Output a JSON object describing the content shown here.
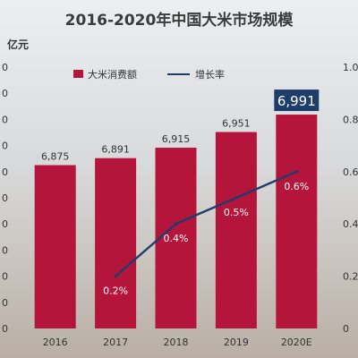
{
  "title": "2016-2020年中国大米市场规模",
  "chart_data": {
    "type": "bar",
    "unit_left": "亿元",
    "categories": [
      "2016",
      "2017",
      "2018",
      "2019",
      "2020E"
    ],
    "series": [
      {
        "name": "大米消费额",
        "type": "bar",
        "axis": "left",
        "color": "#b5153a",
        "values": [
          6875,
          6891,
          6915,
          6951,
          6991
        ],
        "labels": [
          "6,875",
          "6,891",
          "6,915",
          "6,951",
          "6,991"
        ]
      },
      {
        "name": "增长率",
        "type": "line",
        "axis": "right",
        "color": "#1f3d6b",
        "values": [
          null,
          0.2,
          0.4,
          0.5,
          0.6
        ],
        "labels": [
          "",
          "0.2%",
          "0.4%",
          "0.5%",
          "0.6%"
        ]
      }
    ],
    "left_ticks": [
      "0",
      "0",
      "0",
      "0",
      "0",
      "0",
      "0",
      "0",
      "0",
      "0",
      "0"
    ],
    "right_ticks": [
      "0",
      "0.2",
      "0.4",
      "0.6",
      "0.8",
      "1.0"
    ],
    "right_ylim": [
      0,
      1
    ],
    "highlight_index": 4,
    "highlight_color": "#1f3d6b",
    "legend_position": "top"
  }
}
